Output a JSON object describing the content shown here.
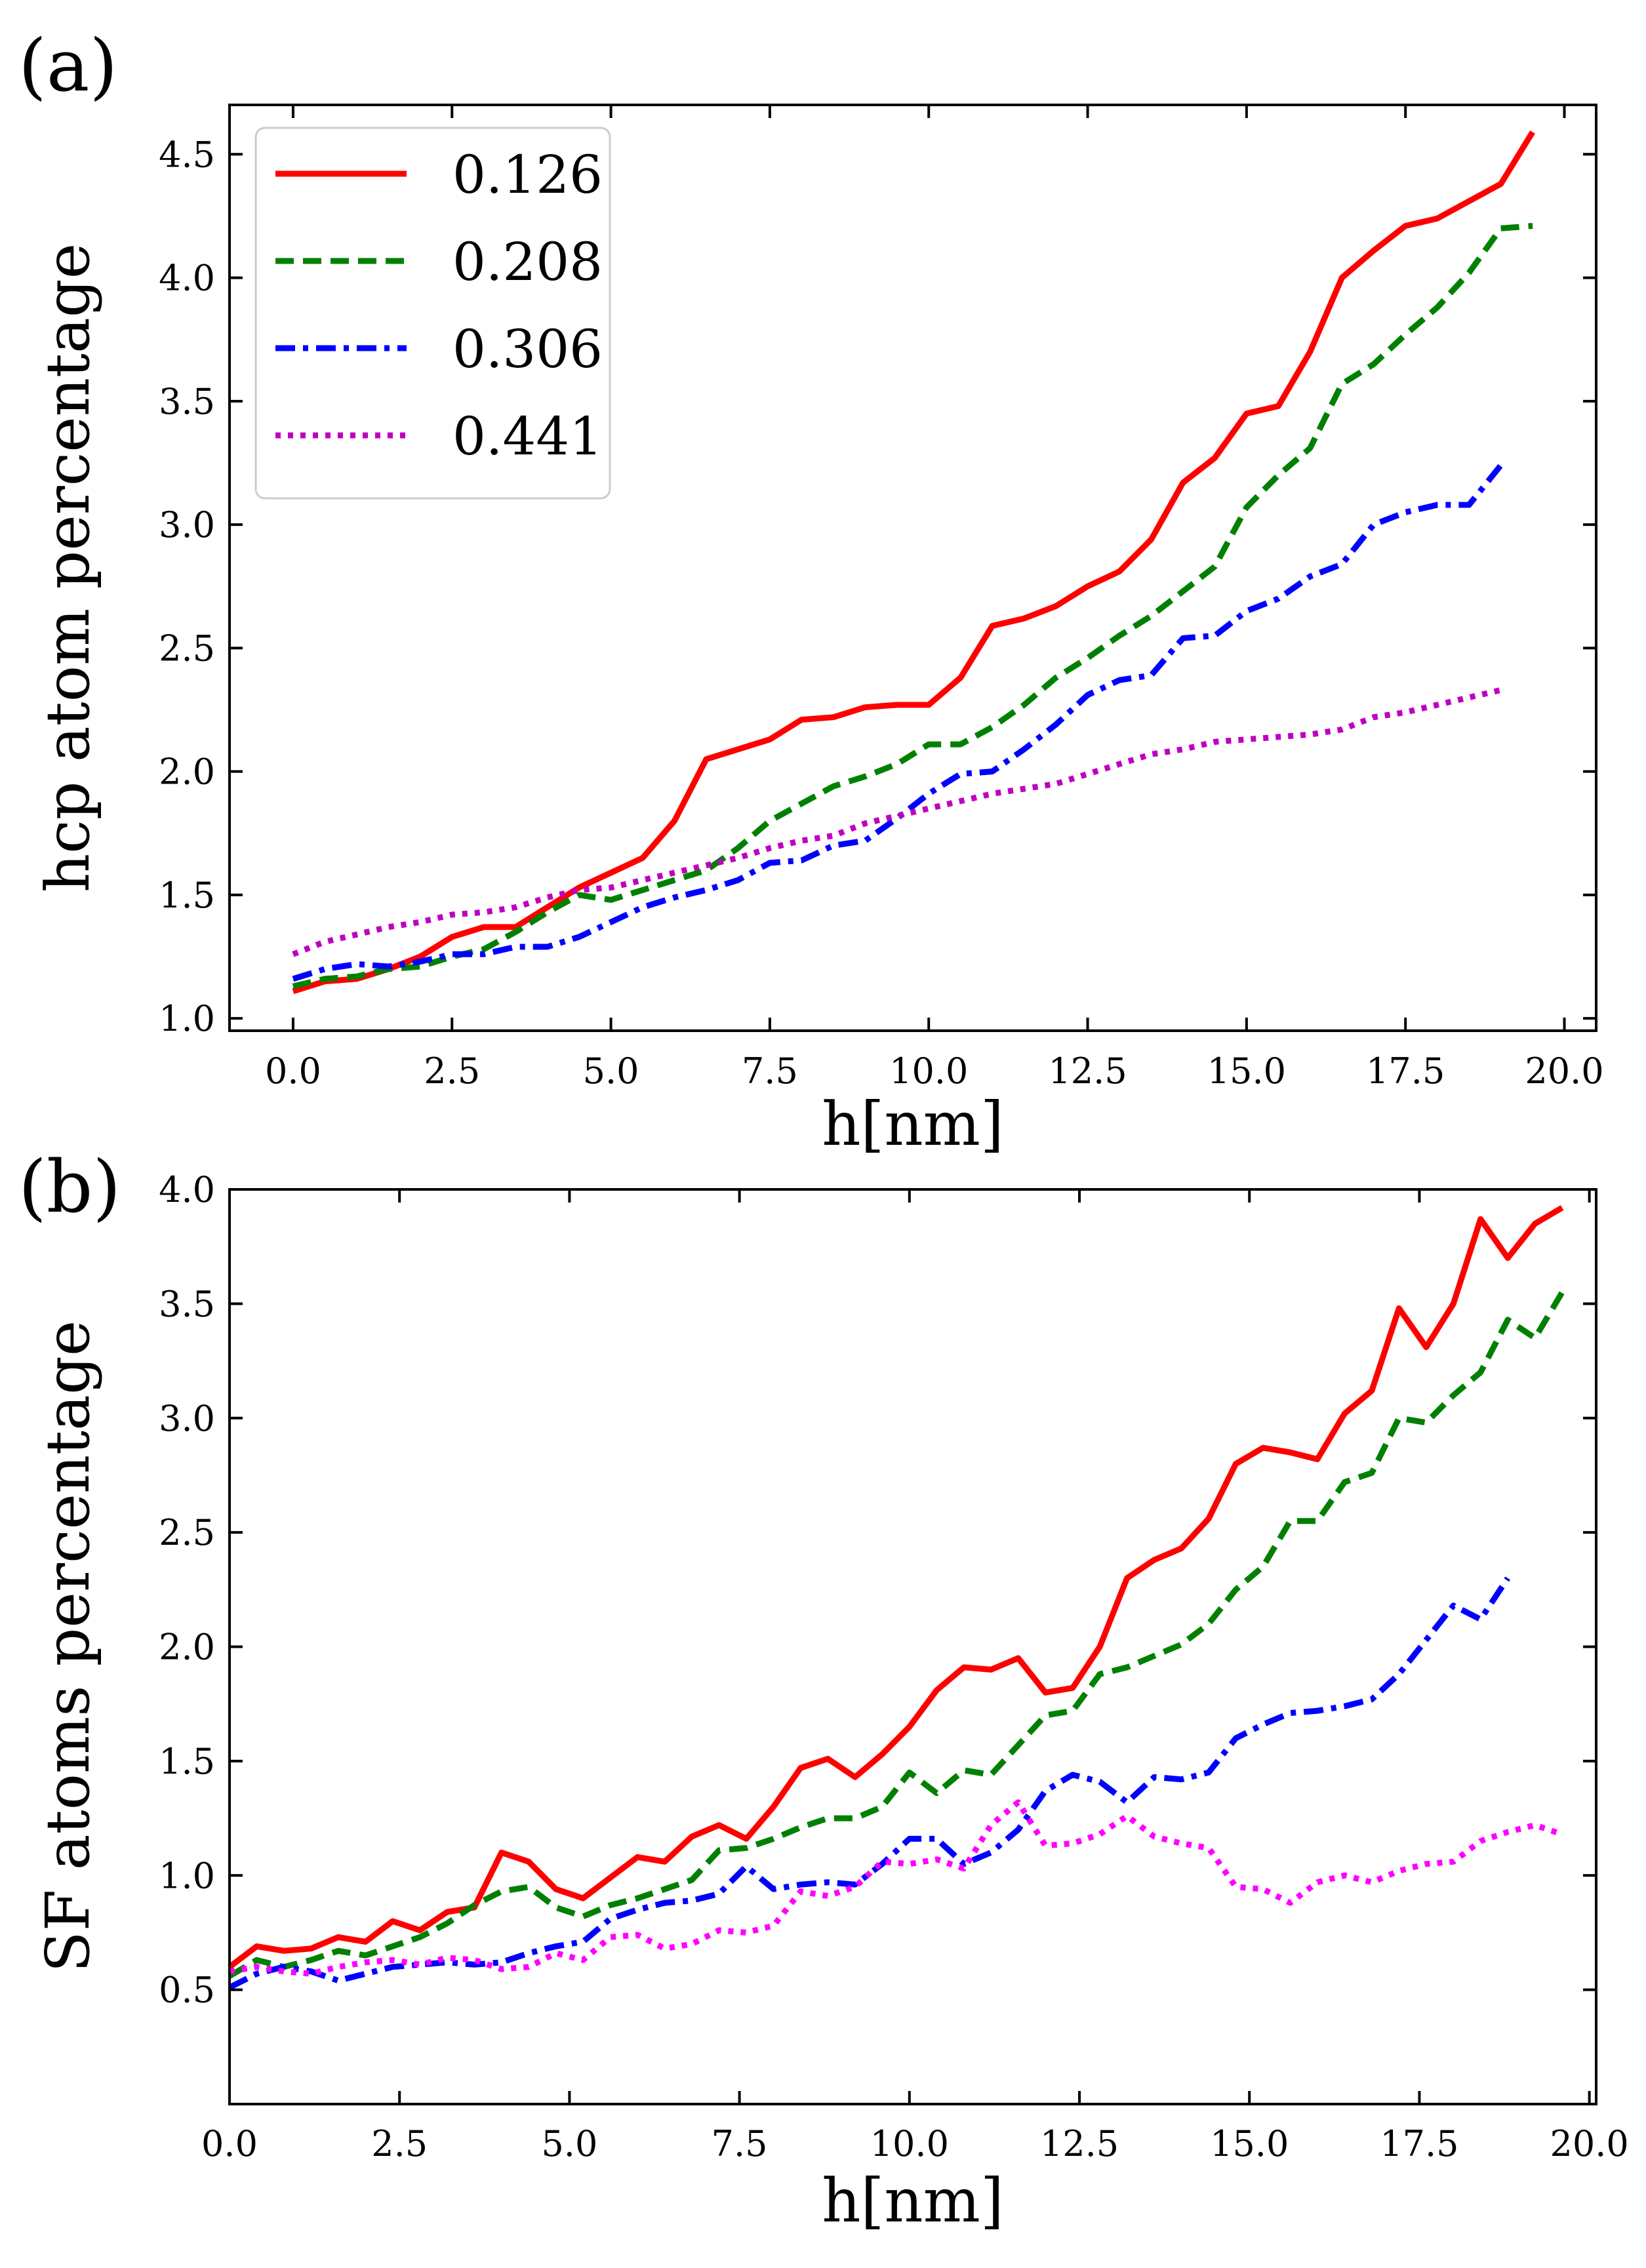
{
  "chart_data": [
    {
      "type": "line",
      "panel_label": "(a)",
      "xlabel": "h[nm]",
      "ylabel": "hcp atom percentage",
      "xlim": [
        -1,
        20.5
      ],
      "ylim": [
        0.95,
        4.7
      ],
      "xticks": [
        0.0,
        2.5,
        5.0,
        7.5,
        10.0,
        12.5,
        15.0,
        17.5,
        20.0
      ],
      "xtick_labels": [
        "0.0",
        "2.5",
        "5.0",
        "7.5",
        "10.0",
        "12.5",
        "15.0",
        "17.5",
        "20.0"
      ],
      "yticks": [
        1.0,
        1.5,
        2.0,
        2.5,
        3.0,
        3.5,
        4.0,
        4.5
      ],
      "ytick_labels": [
        "1.0",
        "1.5",
        "2.0",
        "2.5",
        "3.0",
        "3.5",
        "4.0",
        "4.5"
      ],
      "legend_position": "top-left",
      "series": [
        {
          "name": "0.126",
          "color": "#ff0000",
          "style": "solid",
          "x": [
            0,
            0.5,
            1,
            1.5,
            2,
            2.5,
            3,
            3.5,
            4,
            4.5,
            5,
            5.5,
            6,
            6.5,
            7,
            7.5,
            8,
            8.5,
            9,
            9.5,
            10,
            10.5,
            11,
            11.5,
            12,
            12.5,
            13,
            13.5,
            14,
            14.5,
            15,
            15.5,
            16,
            16.5,
            17,
            17.5,
            18,
            18.5,
            19,
            19.5
          ],
          "y": [
            1.11,
            1.15,
            1.16,
            1.2,
            1.25,
            1.33,
            1.37,
            1.37,
            1.45,
            1.53,
            1.59,
            1.65,
            1.8,
            2.05,
            2.09,
            2.13,
            2.21,
            2.22,
            2.26,
            2.27,
            2.27,
            2.38,
            2.59,
            2.62,
            2.67,
            2.75,
            2.81,
            2.94,
            3.17,
            3.27,
            3.45,
            3.48,
            3.7,
            4.0,
            4.11,
            4.21,
            4.24,
            4.31,
            4.38,
            4.59
          ]
        },
        {
          "name": "0.208",
          "color": "#008000",
          "style": "dashed",
          "x": [
            0,
            0.5,
            1,
            1.5,
            2,
            2.5,
            3,
            3.5,
            4,
            4.5,
            5,
            5.5,
            6,
            6.5,
            7,
            7.5,
            8,
            8.5,
            9,
            9.5,
            10,
            10.5,
            11,
            11.5,
            12,
            12.5,
            13,
            13.5,
            14,
            14.5,
            15,
            15.5,
            16,
            16.5,
            17,
            17.5,
            18,
            18.5,
            19,
            19.5
          ],
          "y": [
            1.13,
            1.16,
            1.17,
            1.2,
            1.21,
            1.25,
            1.28,
            1.35,
            1.43,
            1.5,
            1.48,
            1.52,
            1.56,
            1.6,
            1.69,
            1.8,
            1.87,
            1.94,
            1.98,
            2.03,
            2.11,
            2.11,
            2.18,
            2.27,
            2.38,
            2.46,
            2.55,
            2.63,
            2.73,
            2.83,
            3.07,
            3.2,
            3.31,
            3.57,
            3.65,
            3.77,
            3.88,
            4.02,
            4.2,
            4.21
          ]
        },
        {
          "name": "0.306",
          "color": "#0000ff",
          "style": "dashdot",
          "x": [
            0,
            0.5,
            1,
            1.5,
            2,
            2.5,
            3,
            3.5,
            4,
            4.5,
            5,
            5.5,
            6,
            6.5,
            7,
            7.5,
            8,
            8.5,
            9,
            9.5,
            10,
            10.5,
            11,
            11.5,
            12,
            12.5,
            13,
            13.5,
            14,
            14.5,
            15,
            15.5,
            16,
            16.5,
            17,
            17.5,
            18,
            18.5,
            19
          ],
          "y": [
            1.16,
            1.2,
            1.22,
            1.21,
            1.23,
            1.26,
            1.26,
            1.29,
            1.29,
            1.33,
            1.39,
            1.45,
            1.49,
            1.52,
            1.56,
            1.63,
            1.64,
            1.7,
            1.72,
            1.81,
            1.91,
            1.99,
            2.0,
            2.09,
            2.19,
            2.31,
            2.37,
            2.39,
            2.54,
            2.55,
            2.65,
            2.7,
            2.79,
            2.84,
            3.0,
            3.05,
            3.08,
            3.08,
            3.24
          ]
        },
        {
          "name": "0.441",
          "color": "#bf00bf",
          "style": "dotted",
          "x": [
            0,
            0.5,
            1,
            1.5,
            2,
            2.5,
            3,
            3.5,
            4,
            4.5,
            5,
            5.5,
            6,
            6.5,
            7,
            7.5,
            8,
            8.5,
            9,
            9.5,
            10,
            10.5,
            11,
            11.5,
            12,
            12.5,
            13,
            13.5,
            14,
            14.5,
            15,
            15.5,
            16,
            16.5,
            17,
            17.5,
            18,
            18.5,
            19
          ],
          "y": [
            1.26,
            1.31,
            1.34,
            1.37,
            1.39,
            1.42,
            1.43,
            1.45,
            1.49,
            1.52,
            1.53,
            1.56,
            1.59,
            1.62,
            1.65,
            1.69,
            1.72,
            1.74,
            1.79,
            1.82,
            1.85,
            1.88,
            1.91,
            1.93,
            1.95,
            1.99,
            2.03,
            2.07,
            2.09,
            2.12,
            2.13,
            2.14,
            2.15,
            2.17,
            2.22,
            2.24,
            2.27,
            2.3,
            2.33
          ]
        }
      ]
    },
    {
      "type": "line",
      "panel_label": "(b)",
      "xlabel": "h[nm]",
      "ylabel": "SF atoms percentage",
      "xlim": [
        0,
        20.1
      ],
      "ylim": [
        0.0,
        4.0
      ],
      "xticks": [
        0.0,
        2.5,
        5.0,
        7.5,
        10.0,
        12.5,
        15.0,
        17.5,
        20.0
      ],
      "xtick_labels": [
        "0.0",
        "2.5",
        "5.0",
        "7.5",
        "10.0",
        "12.5",
        "15.0",
        "17.5",
        "20.0"
      ],
      "yticks": [
        0.5,
        1.0,
        1.5,
        2.0,
        2.5,
        3.0,
        3.5,
        4.0
      ],
      "ytick_labels": [
        "0.5",
        "1.0",
        "1.5",
        "2.0",
        "2.5",
        "3.0",
        "3.5",
        "4.0"
      ],
      "series": [
        {
          "name": "0.126",
          "color": "#ff0000",
          "style": "solid",
          "x": [
            0,
            0.4,
            0.8,
            1.2,
            1.6,
            2.0,
            2.4,
            2.8,
            3.2,
            3.6,
            4.0,
            4.4,
            4.8,
            5.2,
            5.6,
            6.0,
            6.4,
            6.8,
            7.2,
            7.6,
            8.0,
            8.4,
            8.8,
            9.2,
            9.6,
            10.0,
            10.4,
            10.8,
            11.2,
            11.6,
            12.0,
            12.4,
            12.8,
            13.2,
            13.6,
            14.0,
            14.4,
            14.8,
            15.2,
            15.6,
            16.0,
            16.4,
            16.8,
            17.2,
            17.6,
            18.0,
            18.4,
            18.8,
            19.2,
            19.6
          ],
          "y": [
            0.6,
            0.69,
            0.67,
            0.68,
            0.73,
            0.71,
            0.8,
            0.76,
            0.84,
            0.86,
            1.1,
            1.06,
            0.94,
            0.9,
            0.99,
            1.08,
            1.06,
            1.17,
            1.22,
            1.16,
            1.3,
            1.47,
            1.51,
            1.43,
            1.53,
            1.65,
            1.81,
            1.91,
            1.9,
            1.95,
            1.8,
            1.82,
            2.0,
            2.3,
            2.38,
            2.43,
            2.56,
            2.8,
            2.87,
            2.85,
            2.82,
            3.02,
            3.12,
            3.48,
            3.31,
            3.5,
            3.87,
            3.7,
            3.85,
            3.92
          ]
        },
        {
          "name": "0.208",
          "color": "#008000",
          "style": "dashed",
          "x": [
            0,
            0.4,
            0.8,
            1.2,
            1.6,
            2.0,
            2.4,
            2.8,
            3.2,
            3.6,
            4.0,
            4.4,
            4.8,
            5.2,
            5.6,
            6.0,
            6.4,
            6.8,
            7.2,
            7.6,
            8.0,
            8.4,
            8.8,
            9.2,
            9.6,
            10.0,
            10.4,
            10.8,
            11.2,
            11.6,
            12.0,
            12.4,
            12.8,
            13.2,
            13.6,
            14.0,
            14.4,
            14.8,
            15.2,
            15.6,
            16.0,
            16.4,
            16.8,
            17.2,
            17.6,
            18.0,
            18.4,
            18.8,
            19.2,
            19.6
          ],
          "y": [
            0.56,
            0.63,
            0.6,
            0.63,
            0.67,
            0.65,
            0.69,
            0.73,
            0.79,
            0.87,
            0.93,
            0.95,
            0.86,
            0.82,
            0.87,
            0.9,
            0.94,
            0.98,
            1.11,
            1.12,
            1.16,
            1.21,
            1.25,
            1.25,
            1.3,
            1.45,
            1.36,
            1.46,
            1.44,
            1.57,
            1.7,
            1.72,
            1.88,
            1.91,
            1.96,
            2.01,
            2.1,
            2.25,
            2.35,
            2.55,
            2.55,
            2.72,
            2.76,
            3.0,
            2.98,
            3.1,
            3.2,
            3.43,
            3.35,
            3.55
          ]
        },
        {
          "name": "0.306",
          "color": "#0000ff",
          "style": "dashdot",
          "x": [
            0,
            0.4,
            0.8,
            1.2,
            1.6,
            2.0,
            2.4,
            2.8,
            3.2,
            3.6,
            4.0,
            4.4,
            4.8,
            5.2,
            5.6,
            6.0,
            6.4,
            6.8,
            7.2,
            7.6,
            8.0,
            8.4,
            8.8,
            9.2,
            9.6,
            10.0,
            10.4,
            10.8,
            11.2,
            11.6,
            12.0,
            12.4,
            12.8,
            13.2,
            13.6,
            14.0,
            14.4,
            14.8,
            15.2,
            15.6,
            16.0,
            16.4,
            16.8,
            17.2,
            17.6,
            18.0,
            18.4,
            18.8
          ],
          "y": [
            0.51,
            0.57,
            0.6,
            0.58,
            0.54,
            0.57,
            0.6,
            0.61,
            0.62,
            0.61,
            0.62,
            0.66,
            0.69,
            0.71,
            0.81,
            0.85,
            0.88,
            0.89,
            0.92,
            1.04,
            0.94,
            0.96,
            0.97,
            0.96,
            1.05,
            1.16,
            1.16,
            1.05,
            1.1,
            1.2,
            1.37,
            1.44,
            1.41,
            1.32,
            1.43,
            1.42,
            1.45,
            1.6,
            1.66,
            1.71,
            1.72,
            1.74,
            1.77,
            1.88,
            2.03,
            2.18,
            2.12,
            2.3
          ]
        },
        {
          "name": "0.441",
          "color": "#ff00ff",
          "style": "dotted",
          "x": [
            0,
            0.4,
            0.8,
            1.2,
            1.6,
            2.0,
            2.4,
            2.8,
            3.2,
            3.6,
            4.0,
            4.4,
            4.8,
            5.2,
            5.6,
            6.0,
            6.4,
            6.8,
            7.2,
            7.6,
            8.0,
            8.4,
            8.8,
            9.2,
            9.6,
            10.0,
            10.4,
            10.8,
            11.2,
            11.6,
            12.0,
            12.4,
            12.8,
            13.2,
            13.6,
            14.0,
            14.4,
            14.8,
            15.2,
            15.6,
            16.0,
            16.4,
            16.8,
            17.2,
            17.6,
            18.0,
            18.4,
            18.8,
            19.2,
            19.6
          ],
          "y": [
            0.58,
            0.6,
            0.58,
            0.57,
            0.6,
            0.62,
            0.63,
            0.61,
            0.64,
            0.63,
            0.59,
            0.6,
            0.66,
            0.63,
            0.73,
            0.74,
            0.68,
            0.7,
            0.76,
            0.75,
            0.78,
            0.93,
            0.91,
            0.95,
            1.06,
            1.05,
            1.07,
            1.03,
            1.22,
            1.32,
            1.13,
            1.14,
            1.18,
            1.26,
            1.17,
            1.14,
            1.12,
            0.95,
            0.94,
            0.88,
            0.97,
            1.0,
            0.97,
            1.02,
            1.05,
            1.06,
            1.15,
            1.19,
            1.22,
            1.18
          ]
        }
      ]
    }
  ]
}
